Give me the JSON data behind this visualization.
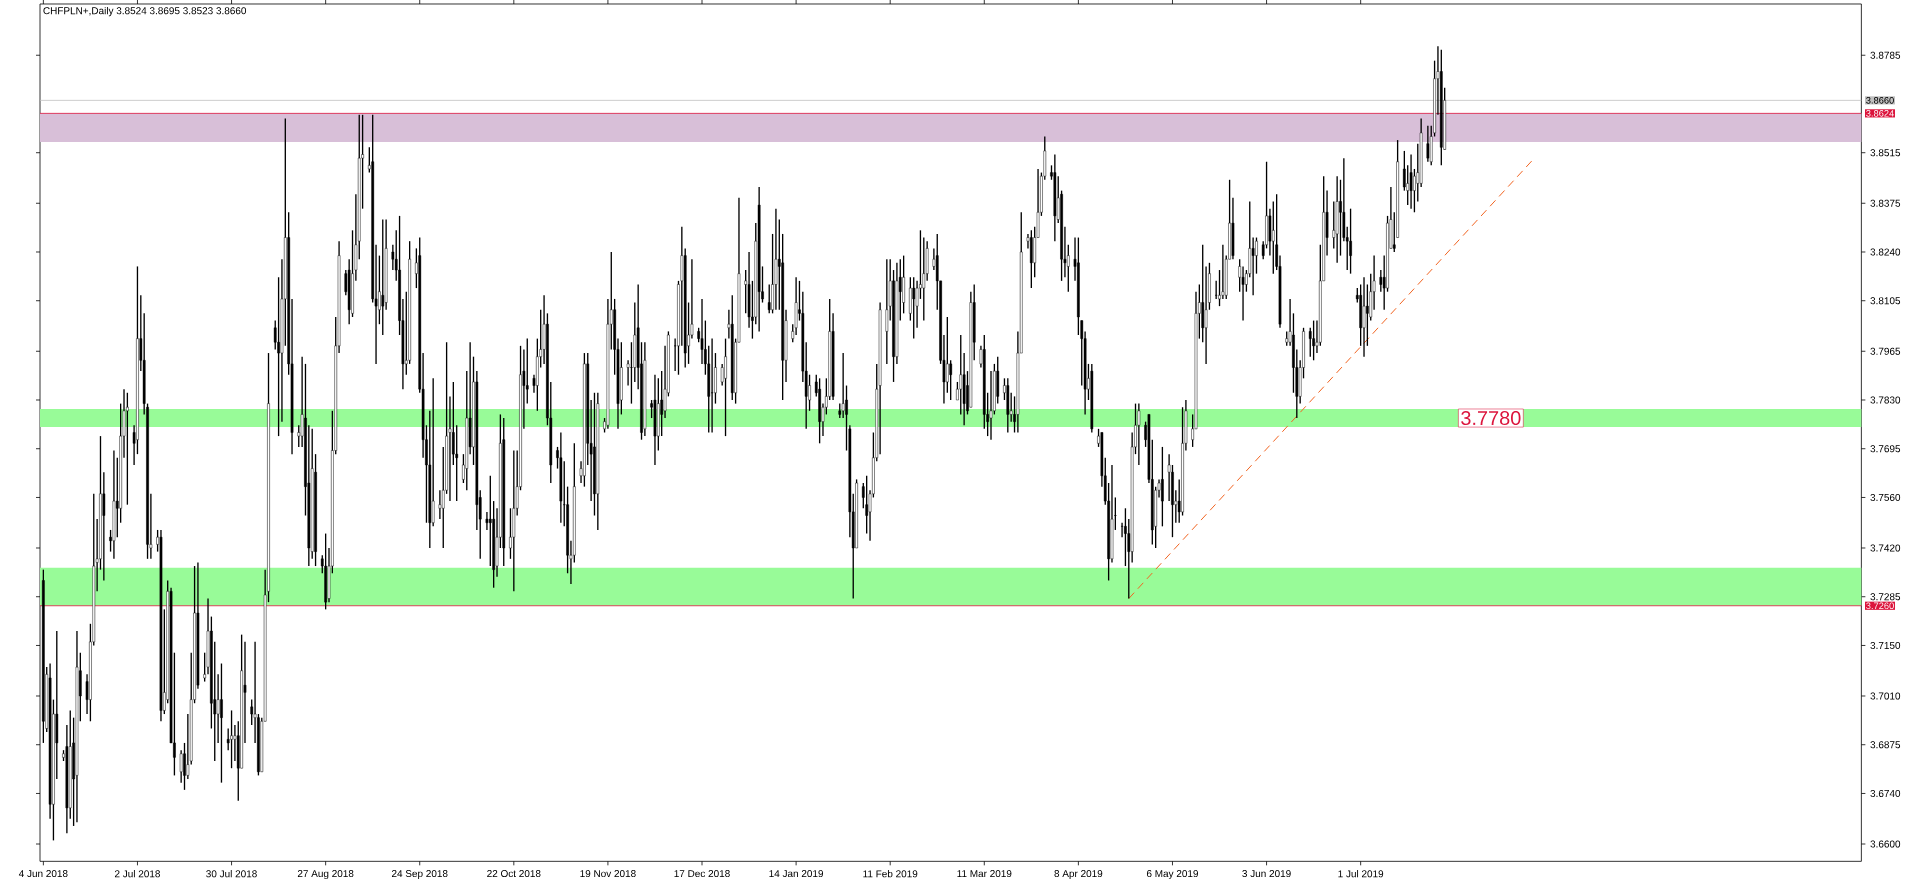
{
  "chart_data": {
    "type": "candlestick",
    "title": "CHFPLN+,Daily  3.8524 3.8695 3.8523 3.8660",
    "xlim": [
      "2018-06-03",
      "2019-11-27"
    ],
    "ylim": [
      3.6552,
      3.8927
    ],
    "xticks": [
      {
        "value": "2018-06-04",
        "label": "4 Jun 2018"
      },
      {
        "value": "2018-07-02",
        "label": "2 Jul 2018"
      },
      {
        "value": "2018-07-30",
        "label": "30 Jul 2018"
      },
      {
        "value": "2018-08-27",
        "label": "27 Aug 2018"
      },
      {
        "value": "2018-09-24",
        "label": "24 Sep 2018"
      },
      {
        "value": "2018-10-22",
        "label": "22 Oct 2018"
      },
      {
        "value": "2018-11-19",
        "label": "19 Nov 2018"
      },
      {
        "value": "2018-12-17",
        "label": "17 Dec 2018"
      },
      {
        "value": "2019-01-14",
        "label": "14 Jan 2019"
      },
      {
        "value": "2019-02-11",
        "label": "11 Feb 2019"
      },
      {
        "value": "2019-03-11",
        "label": "11 Mar 2019"
      },
      {
        "value": "2019-04-08",
        "label": "8 Apr 2019"
      },
      {
        "value": "2019-05-06",
        "label": "6 May 2019"
      },
      {
        "value": "2019-06-03",
        "label": "3 Jun 2019"
      },
      {
        "value": "2019-07-01",
        "label": "1 Jul 2019"
      }
    ],
    "yticks": [
      {
        "value": 3.8785,
        "label": "3.8785"
      },
      {
        "value": 3.8515,
        "label": "3.8515"
      },
      {
        "value": 3.8375,
        "label": "3.8375"
      },
      {
        "value": 3.824,
        "label": "3.8240"
      },
      {
        "value": 3.8105,
        "label": "3.8105"
      },
      {
        "value": 3.7965,
        "label": "3.7965"
      },
      {
        "value": 3.783,
        "label": "3.7830"
      },
      {
        "value": 3.7695,
        "label": "3.7695"
      },
      {
        "value": 3.756,
        "label": "3.7560"
      },
      {
        "value": 3.742,
        "label": "3.7420"
      },
      {
        "value": 3.7285,
        "label": "3.7285"
      },
      {
        "value": 3.715,
        "label": "3.7150"
      },
      {
        "value": 3.701,
        "label": "3.7010"
      },
      {
        "value": 3.6875,
        "label": "3.6875"
      },
      {
        "value": 3.674,
        "label": "3.6740"
      },
      {
        "value": 3.66,
        "label": "3.6600"
      }
    ],
    "bands": [
      {
        "axis": "y",
        "from": 3.8545,
        "to": 3.8624,
        "color": "#d8bfd8"
      },
      {
        "axis": "y",
        "from": 3.726,
        "to": 3.7365,
        "color": "#98fb98"
      },
      {
        "axis": "y",
        "from": 3.7755,
        "to": 3.7805,
        "label": "3.7780",
        "color": "#98fb98"
      }
    ],
    "ref_lines": [
      {
        "axis": "y",
        "value": 3.866,
        "label": "3.8660",
        "color": "#c0c0c0"
      },
      {
        "axis": "y",
        "value": 3.8624,
        "label": "3.8624",
        "color": "#dc143c"
      },
      {
        "axis": "y",
        "value": 3.726,
        "label": "3.7260",
        "color": "#dc143c"
      }
    ],
    "series": [
      {
        "type": "line",
        "x": [
          "2019-04-23",
          "2019-08-21"
        ],
        "values": [
          3.728,
          3.8493
        ],
        "color": "#f26522",
        "line_style": "dashed"
      }
    ],
    "x": [
      "2018-06-04",
      "2018-06-05",
      "2018-06-06",
      "2018-06-07",
      "2018-06-08",
      "2018-06-10",
      "2018-06-11",
      "2018-06-12",
      "2018-06-13",
      "2018-06-14",
      "2018-06-15",
      "2018-06-17",
      "2018-06-18",
      "2018-06-19",
      "2018-06-20",
      "2018-06-21",
      "2018-06-22",
      "2018-06-24",
      "2018-06-25",
      "2018-06-26",
      "2018-06-27",
      "2018-06-28",
      "2018-06-29",
      "2018-07-01",
      "2018-07-02",
      "2018-07-03",
      "2018-07-04",
      "2018-07-05",
      "2018-07-06",
      "2018-07-08",
      "2018-07-09",
      "2018-07-10",
      "2018-07-11",
      "2018-07-12",
      "2018-07-13",
      "2018-07-15",
      "2018-07-16",
      "2018-07-17",
      "2018-07-18",
      "2018-07-19",
      "2018-07-20",
      "2018-07-22",
      "2018-07-23",
      "2018-07-24",
      "2018-07-25",
      "2018-07-26",
      "2018-07-27",
      "2018-07-29",
      "2018-07-30",
      "2018-07-31",
      "2018-08-01",
      "2018-08-02",
      "2018-08-03",
      "2018-08-05",
      "2018-08-06",
      "2018-08-07",
      "2018-08-08",
      "2018-08-09",
      "2018-08-10",
      "2018-08-12",
      "2018-08-13",
      "2018-08-14",
      "2018-08-15",
      "2018-08-16",
      "2018-08-17",
      "2018-08-19",
      "2018-08-20",
      "2018-08-21",
      "2018-08-22",
      "2018-08-23",
      "2018-08-24",
      "2018-08-26",
      "2018-08-27",
      "2018-08-28",
      "2018-08-29",
      "2018-08-30",
      "2018-08-31",
      "2018-09-02",
      "2018-09-03",
      "2018-09-04",
      "2018-09-05",
      "2018-09-06",
      "2018-09-07",
      "2018-09-09",
      "2018-09-10",
      "2018-09-11",
      "2018-09-12",
      "2018-09-13",
      "2018-09-14",
      "2018-09-16",
      "2018-09-17",
      "2018-09-18",
      "2018-09-19",
      "2018-09-20",
      "2018-09-21",
      "2018-09-23",
      "2018-09-24",
      "2018-09-25",
      "2018-09-26",
      "2018-09-27",
      "2018-09-28",
      "2018-09-30",
      "2018-10-01",
      "2018-10-02",
      "2018-10-03",
      "2018-10-04",
      "2018-10-05",
      "2018-10-07",
      "2018-10-08",
      "2018-10-09",
      "2018-10-10",
      "2018-10-11",
      "2018-10-12",
      "2018-10-14",
      "2018-10-15",
      "2018-10-16",
      "2018-10-17",
      "2018-10-18",
      "2018-10-19",
      "2018-10-21",
      "2018-10-22",
      "2018-10-23",
      "2018-10-24",
      "2018-10-25",
      "2018-10-26",
      "2018-10-28",
      "2018-10-29",
      "2018-10-30",
      "2018-10-31",
      "2018-11-01",
      "2018-11-02",
      "2018-11-04",
      "2018-11-05",
      "2018-11-06",
      "2018-11-07",
      "2018-11-08",
      "2018-11-09",
      "2018-11-11",
      "2018-11-12",
      "2018-11-13",
      "2018-11-14",
      "2018-11-15",
      "2018-11-16",
      "2018-11-18",
      "2018-11-19",
      "2018-11-20",
      "2018-11-21",
      "2018-11-22",
      "2018-11-23",
      "2018-11-25",
      "2018-11-26",
      "2018-11-27",
      "2018-11-28",
      "2018-11-29",
      "2018-11-30",
      "2018-12-02",
      "2018-12-03",
      "2018-12-04",
      "2018-12-05",
      "2018-12-06",
      "2018-12-07",
      "2018-12-09",
      "2018-12-10",
      "2018-12-11",
      "2018-12-12",
      "2018-12-13",
      "2018-12-14",
      "2018-12-16",
      "2018-12-17",
      "2018-12-18",
      "2018-12-19",
      "2018-12-20",
      "2018-12-21",
      "2018-12-23",
      "2018-12-24",
      "2018-12-25",
      "2018-12-26",
      "2018-12-27",
      "2018-12-28",
      "2018-12-30",
      "2018-12-31",
      "2019-01-01",
      "2019-01-02",
      "2019-01-03",
      "2019-01-04",
      "2019-01-06",
      "2019-01-07",
      "2019-01-08",
      "2019-01-09",
      "2019-01-10",
      "2019-01-11",
      "2019-01-13",
      "2019-01-14",
      "2019-01-15",
      "2019-01-16",
      "2019-01-17",
      "2019-01-18",
      "2019-01-20",
      "2019-01-21",
      "2019-01-22",
      "2019-01-23",
      "2019-01-24",
      "2019-01-25",
      "2019-01-27",
      "2019-01-28",
      "2019-01-29",
      "2019-01-30",
      "2019-01-31",
      "2019-02-01",
      "2019-02-03",
      "2019-02-04",
      "2019-02-05",
      "2019-02-06",
      "2019-02-07",
      "2019-02-08",
      "2019-02-10",
      "2019-02-11",
      "2019-02-12",
      "2019-02-13",
      "2019-02-14",
      "2019-02-15",
      "2019-02-17",
      "2019-02-18",
      "2019-02-19",
      "2019-02-20",
      "2019-02-21",
      "2019-02-22",
      "2019-02-24",
      "2019-02-25",
      "2019-02-26",
      "2019-02-27",
      "2019-02-28",
      "2019-03-01",
      "2019-03-03",
      "2019-03-04",
      "2019-03-05",
      "2019-03-06",
      "2019-03-07",
      "2019-03-08",
      "2019-03-10",
      "2019-03-11",
      "2019-03-12",
      "2019-03-13",
      "2019-03-14",
      "2019-03-15",
      "2019-03-17",
      "2019-03-18",
      "2019-03-19",
      "2019-03-20",
      "2019-03-21",
      "2019-03-22",
      "2019-03-24",
      "2019-03-25",
      "2019-03-26",
      "2019-03-27",
      "2019-03-28",
      "2019-03-29",
      "2019-03-31",
      "2019-04-01",
      "2019-04-02",
      "2019-04-03",
      "2019-04-04",
      "2019-04-05",
      "2019-04-07",
      "2019-04-08",
      "2019-04-09",
      "2019-04-10",
      "2019-04-11",
      "2019-04-12",
      "2019-04-14",
      "2019-04-15",
      "2019-04-16",
      "2019-04-17",
      "2019-04-18",
      "2019-04-19",
      "2019-04-21",
      "2019-04-22",
      "2019-04-23",
      "2019-04-24",
      "2019-04-25",
      "2019-04-26",
      "2019-04-28",
      "2019-04-29",
      "2019-04-30",
      "2019-05-01",
      "2019-05-02",
      "2019-05-03",
      "2019-05-05",
      "2019-05-06",
      "2019-05-07",
      "2019-05-08",
      "2019-05-09",
      "2019-05-10",
      "2019-05-12",
      "2019-05-13",
      "2019-05-14",
      "2019-05-15",
      "2019-05-16",
      "2019-05-17",
      "2019-05-19",
      "2019-05-20",
      "2019-05-21",
      "2019-05-22",
      "2019-05-23",
      "2019-05-24",
      "2019-05-26",
      "2019-05-27",
      "2019-05-28",
      "2019-05-29",
      "2019-05-30",
      "2019-05-31",
      "2019-06-02",
      "2019-06-03",
      "2019-06-04",
      "2019-06-05",
      "2019-06-06",
      "2019-06-07",
      "2019-06-09",
      "2019-06-10",
      "2019-06-11",
      "2019-06-12",
      "2019-06-13",
      "2019-06-14",
      "2019-06-16",
      "2019-06-17",
      "2019-06-18",
      "2019-06-19",
      "2019-06-20",
      "2019-06-21",
      "2019-06-23",
      "2019-06-24",
      "2019-06-25",
      "2019-06-26",
      "2019-06-27",
      "2019-06-28",
      "2019-06-30",
      "2019-07-01",
      "2019-07-02",
      "2019-07-03",
      "2019-07-04",
      "2019-07-05",
      "2019-07-07",
      "2019-07-08",
      "2019-07-09",
      "2019-07-10",
      "2019-07-11",
      "2019-07-12",
      "2019-07-14",
      "2019-07-15",
      "2019-07-16",
      "2019-07-17",
      "2019-07-18",
      "2019-07-19",
      "2019-07-21",
      "2019-07-22",
      "2019-07-23",
      "2019-07-24",
      "2019-07-25",
      "2019-07-26"
    ],
    "ohlc": [
      [
        3.733,
        3.736,
        3.688,
        3.694
      ],
      [
        3.692,
        3.709,
        3.691,
        3.707
      ],
      [
        3.706,
        3.71,
        3.667,
        3.671
      ],
      [
        3.671,
        3.7,
        3.661,
        3.696
      ],
      [
        3.696,
        3.719,
        3.678,
        3.688
      ],
      [
        3.684,
        3.686,
        3.683,
        3.685
      ],
      [
        3.687,
        3.693,
        3.663,
        3.67
      ],
      [
        3.67,
        3.697,
        3.667,
        3.687
      ],
      [
        3.688,
        3.695,
        3.665,
        3.678
      ],
      [
        3.679,
        3.719,
        3.666,
        3.709
      ],
      [
        3.708,
        3.713,
        3.694,
        3.701
      ],
      [
        3.705,
        3.707,
        3.696,
        3.7
      ],
      [
        3.7,
        3.721,
        3.694,
        3.716
      ],
      [
        3.716,
        3.757,
        3.715,
        3.737
      ],
      [
        3.738,
        3.75,
        3.73,
        3.739
      ],
      [
        3.739,
        3.773,
        3.736,
        3.757
      ],
      [
        3.757,
        3.763,
        3.733,
        3.751
      ],
      [
        3.745,
        3.747,
        3.741,
        3.744
      ],
      [
        3.744,
        3.769,
        3.739,
        3.755
      ],
      [
        3.755,
        3.767,
        3.745,
        3.753
      ],
      [
        3.753,
        3.782,
        3.749,
        3.773
      ],
      [
        3.773,
        3.786,
        3.767,
        3.78
      ],
      [
        3.78,
        3.785,
        3.754,
        3.781
      ],
      [
        3.774,
        3.776,
        3.765,
        3.771
      ],
      [
        3.772,
        3.82,
        3.768,
        3.8
      ],
      [
        3.8,
        3.812,
        3.791,
        3.794
      ],
      [
        3.794,
        3.807,
        3.779,
        3.782
      ],
      [
        3.781,
        3.782,
        3.739,
        3.743
      ],
      [
        3.742,
        3.757,
        3.739,
        3.743
      ],
      [
        3.743,
        3.747,
        3.741,
        3.745
      ],
      [
        3.745,
        3.747,
        3.694,
        3.697
      ],
      [
        3.697,
        3.725,
        3.696,
        3.702
      ],
      [
        3.7,
        3.733,
        3.699,
        3.73
      ],
      [
        3.73,
        3.731,
        3.688,
        3.688
      ],
      [
        3.688,
        3.713,
        3.679,
        3.684
      ],
      [
        3.68,
        3.686,
        3.677,
        3.685
      ],
      [
        3.685,
        3.688,
        3.675,
        3.679
      ],
      [
        3.679,
        3.696,
        3.678,
        3.682
      ],
      [
        3.683,
        3.713,
        3.682,
        3.7
      ],
      [
        3.7,
        3.737,
        3.699,
        3.724
      ],
      [
        3.724,
        3.738,
        3.703,
        3.704
      ],
      [
        3.706,
        3.713,
        3.705,
        3.707
      ],
      [
        3.709,
        3.728,
        3.707,
        3.719
      ],
      [
        3.719,
        3.723,
        3.692,
        3.699
      ],
      [
        3.7,
        3.716,
        3.683,
        3.696
      ],
      [
        3.696,
        3.707,
        3.688,
        3.7
      ],
      [
        3.7,
        3.71,
        3.677,
        3.695
      ],
      [
        3.689,
        3.692,
        3.686,
        3.688
      ],
      [
        3.689,
        3.697,
        3.681,
        3.69
      ],
      [
        3.689,
        3.693,
        3.683,
        3.69
      ],
      [
        3.69,
        3.694,
        3.672,
        3.681
      ],
      [
        3.681,
        3.718,
        3.681,
        3.708
      ],
      [
        3.704,
        3.716,
        3.688,
        3.702
      ],
      [
        3.698,
        3.7,
        3.693,
        3.696
      ],
      [
        3.695,
        3.716,
        3.688,
        3.696
      ],
      [
        3.695,
        3.696,
        3.679,
        3.68
      ],
      [
        3.68,
        3.695,
        3.68,
        3.694
      ],
      [
        3.694,
        3.736,
        3.694,
        3.729
      ],
      [
        3.73,
        3.796,
        3.727,
        3.782
      ],
      [
        3.803,
        3.805,
        3.797,
        3.799
      ],
      [
        3.799,
        3.817,
        3.773,
        3.796
      ],
      [
        3.796,
        3.822,
        3.777,
        3.811
      ],
      [
        3.811,
        3.861,
        3.798,
        3.828
      ],
      [
        3.828,
        3.835,
        3.79,
        3.793
      ],
      [
        3.793,
        3.811,
        3.768,
        3.774
      ],
      [
        3.773,
        3.776,
        3.77,
        3.774
      ],
      [
        3.773,
        3.795,
        3.77,
        3.779
      ],
      [
        3.778,
        3.793,
        3.751,
        3.759
      ],
      [
        3.76,
        3.776,
        3.737,
        3.742
      ],
      [
        3.741,
        3.775,
        3.739,
        3.764
      ],
      [
        3.763,
        3.768,
        3.737,
        3.741
      ],
      [
        3.739,
        3.74,
        3.735,
        3.737
      ],
      [
        3.737,
        3.746,
        3.725,
        3.727
      ],
      [
        3.728,
        3.742,
        3.727,
        3.737
      ],
      [
        3.737,
        3.78,
        3.735,
        3.769
      ],
      [
        3.769,
        3.806,
        3.768,
        3.798
      ],
      [
        3.798,
        3.827,
        3.796,
        3.823
      ],
      [
        3.818,
        3.819,
        3.812,
        3.813
      ],
      [
        3.819,
        3.822,
        3.804,
        3.808
      ],
      [
        3.807,
        3.83,
        3.806,
        3.818
      ],
      [
        3.819,
        3.84,
        3.816,
        3.826
      ],
      [
        3.827,
        3.862,
        3.822,
        3.85
      ],
      [
        3.85,
        3.862,
        3.836,
        3.851
      ],
      [
        3.847,
        3.853,
        3.846,
        3.848
      ],
      [
        3.849,
        3.862,
        3.81,
        3.811
      ],
      [
        3.811,
        3.826,
        3.793,
        3.809
      ],
      [
        3.808,
        3.823,
        3.804,
        3.813
      ],
      [
        3.812,
        3.833,
        3.801,
        3.809
      ],
      [
        3.81,
        3.833,
        3.808,
        3.825
      ],
      [
        3.824,
        3.826,
        3.819,
        3.822
      ],
      [
        3.822,
        3.83,
        3.816,
        3.819
      ],
      [
        3.819,
        3.834,
        3.801,
        3.805
      ],
      [
        3.805,
        3.811,
        3.786,
        3.793
      ],
      [
        3.793,
        3.813,
        3.79,
        3.794
      ],
      [
        3.794,
        3.827,
        3.793,
        3.822
      ],
      [
        3.818,
        3.825,
        3.814,
        3.821
      ],
      [
        3.823,
        3.828,
        3.785,
        3.786
      ],
      [
        3.786,
        3.796,
        3.767,
        3.772
      ],
      [
        3.772,
        3.776,
        3.749,
        3.765
      ],
      [
        3.765,
        3.78,
        3.742,
        3.749
      ],
      [
        3.749,
        3.789,
        3.748,
        3.755
      ],
      [
        3.753,
        3.758,
        3.75,
        3.754
      ],
      [
        3.753,
        3.77,
        3.742,
        3.758
      ],
      [
        3.758,
        3.799,
        3.757,
        3.773
      ],
      [
        3.774,
        3.784,
        3.755,
        3.775
      ],
      [
        3.774,
        3.788,
        3.765,
        3.768
      ],
      [
        3.768,
        3.776,
        3.755,
        3.767
      ],
      [
        3.761,
        3.768,
        3.76,
        3.765
      ],
      [
        3.764,
        3.791,
        3.758,
        3.778
      ],
      [
        3.778,
        3.799,
        3.768,
        3.77
      ],
      [
        3.77,
        3.795,
        3.765,
        3.788
      ],
      [
        3.788,
        3.791,
        3.747,
        3.754
      ],
      [
        3.756,
        3.758,
        3.739,
        3.75
      ],
      [
        3.75,
        3.752,
        3.747,
        3.749
      ],
      [
        3.75,
        3.762,
        3.737,
        3.749
      ],
      [
        3.75,
        3.755,
        3.731,
        3.736
      ],
      [
        3.737,
        3.753,
        3.734,
        3.745
      ],
      [
        3.745,
        3.779,
        3.742,
        3.771
      ],
      [
        3.772,
        3.778,
        3.737,
        3.742
      ],
      [
        3.742,
        3.753,
        3.739,
        3.745
      ],
      [
        3.745,
        3.769,
        3.73,
        3.753
      ],
      [
        3.753,
        3.769,
        3.751,
        3.759
      ],
      [
        3.759,
        3.798,
        3.758,
        3.79
      ],
      [
        3.791,
        3.797,
        3.775,
        3.787
      ],
      [
        3.787,
        3.8,
        3.782,
        3.786
      ],
      [
        3.789,
        3.79,
        3.785,
        3.787
      ],
      [
        3.787,
        3.8,
        3.78,
        3.795
      ],
      [
        3.795,
        3.808,
        3.792,
        3.797
      ],
      [
        3.797,
        3.812,
        3.793,
        3.804
      ],
      [
        3.804,
        3.807,
        3.776,
        3.778
      ],
      [
        3.778,
        3.788,
        3.76,
        3.765
      ],
      [
        3.769,
        3.77,
        3.764,
        3.767
      ],
      [
        3.767,
        3.774,
        3.749,
        3.755
      ],
      [
        3.754,
        3.766,
        3.748,
        3.754
      ],
      [
        3.754,
        3.759,
        3.735,
        3.74
      ],
      [
        3.739,
        3.744,
        3.732,
        3.74
      ],
      [
        3.74,
        3.771,
        3.738,
        3.759
      ],
      [
        3.762,
        3.766,
        3.76,
        3.764
      ],
      [
        3.762,
        3.796,
        3.759,
        3.793
      ],
      [
        3.793,
        3.796,
        3.765,
        3.771
      ],
      [
        3.771,
        3.783,
        3.755,
        3.768
      ],
      [
        3.77,
        3.785,
        3.751,
        3.757
      ],
      [
        3.757,
        3.785,
        3.747,
        3.782
      ],
      [
        3.775,
        3.778,
        3.774,
        3.777
      ],
      [
        3.776,
        3.811,
        3.775,
        3.804
      ],
      [
        3.804,
        3.824,
        3.797,
        3.808
      ],
      [
        3.808,
        3.811,
        3.79,
        3.797
      ],
      [
        3.797,
        3.8,
        3.775,
        3.782
      ],
      [
        3.783,
        3.799,
        3.779,
        3.792
      ],
      [
        3.792,
        3.794,
        3.787,
        3.793
      ],
      [
        3.792,
        3.799,
        3.782,
        3.792
      ],
      [
        3.792,
        3.81,
        3.788,
        3.801
      ],
      [
        3.803,
        3.815,
        3.786,
        3.792
      ],
      [
        3.793,
        3.799,
        3.772,
        3.774
      ],
      [
        3.775,
        3.799,
        3.773,
        3.794
      ],
      [
        3.782,
        3.783,
        3.778,
        3.781
      ],
      [
        3.783,
        3.79,
        3.765,
        3.773
      ],
      [
        3.773,
        3.789,
        3.769,
        3.782
      ],
      [
        3.783,
        3.791,
        3.773,
        3.779
      ],
      [
        3.78,
        3.798,
        3.778,
        3.786
      ],
      [
        3.785,
        3.802,
        3.784,
        3.801
      ],
      [
        3.798,
        3.8,
        3.791,
        3.798
      ],
      [
        3.798,
        3.816,
        3.79,
        3.815
      ],
      [
        3.816,
        3.831,
        3.798,
        3.823
      ],
      [
        3.823,
        3.825,
        3.792,
        3.796
      ],
      [
        3.798,
        3.81,
        3.793,
        3.801
      ],
      [
        3.801,
        3.822,
        3.8,
        3.804
      ],
      [
        3.802,
        3.803,
        3.799,
        3.8
      ],
      [
        3.8,
        3.811,
        3.793,
        3.797
      ],
      [
        3.797,
        3.805,
        3.79,
        3.793
      ],
      [
        3.793,
        3.798,
        3.774,
        3.784
      ],
      [
        3.785,
        3.8,
        3.774,
        3.785
      ],
      [
        3.785,
        3.796,
        3.782,
        3.792
      ],
      [
        3.788,
        3.793,
        3.787,
        3.792
      ],
      [
        3.789,
        3.8,
        3.773,
        3.795
      ],
      [
        3.803,
        3.808,
        3.8,
        3.804
      ],
      [
        3.804,
        3.812,
        3.783,
        3.785
      ],
      [
        3.785,
        3.8,
        3.782,
        3.799
      ],
      [
        3.799,
        3.839,
        3.799,
        3.818
      ],
      [
        3.815,
        3.819,
        3.807,
        3.816
      ],
      [
        3.815,
        3.824,
        3.803,
        3.806
      ],
      [
        3.806,
        3.816,
        3.8,
        3.805
      ],
      [
        3.806,
        3.832,
        3.804,
        3.827
      ],
      [
        3.837,
        3.842,
        3.802,
        3.813
      ],
      [
        3.813,
        3.82,
        3.81,
        3.811
      ],
      [
        3.81,
        3.815,
        3.807,
        3.808
      ],
      [
        3.808,
        3.829,
        3.807,
        3.815
      ],
      [
        3.815,
        3.836,
        3.808,
        3.822
      ],
      [
        3.822,
        3.833,
        3.808,
        3.82
      ],
      [
        3.821,
        3.829,
        3.783,
        3.794
      ],
      [
        3.794,
        3.808,
        3.788,
        3.805
      ],
      [
        3.8,
        3.804,
        3.799,
        3.802
      ],
      [
        3.803,
        3.817,
        3.801,
        3.81
      ],
      [
        3.808,
        3.816,
        3.805,
        3.807
      ],
      [
        3.807,
        3.813,
        3.788,
        3.791
      ],
      [
        3.791,
        3.799,
        3.775,
        3.784
      ],
      [
        3.783,
        3.79,
        3.78,
        3.787
      ],
      [
        3.788,
        3.79,
        3.784,
        3.785
      ],
      [
        3.786,
        3.789,
        3.771,
        3.777
      ],
      [
        3.777,
        3.782,
        3.773,
        3.781
      ],
      [
        3.781,
        3.789,
        3.779,
        3.784
      ],
      [
        3.784,
        3.811,
        3.783,
        3.802
      ],
      [
        3.802,
        3.807,
        3.783,
        3.784
      ],
      [
        3.78,
        3.782,
        3.778,
        3.779
      ],
      [
        3.78,
        3.796,
        3.778,
        3.782
      ],
      [
        3.783,
        3.787,
        3.769,
        3.779
      ],
      [
        3.775,
        3.776,
        3.745,
        3.752
      ],
      [
        3.752,
        3.757,
        3.728,
        3.742
      ],
      [
        3.742,
        3.761,
        3.742,
        3.76
      ],
      [
        3.759,
        3.76,
        3.753,
        3.756
      ],
      [
        3.754,
        3.762,
        3.746,
        3.751
      ],
      [
        3.752,
        3.758,
        3.744,
        3.757
      ],
      [
        3.757,
        3.774,
        3.756,
        3.767
      ],
      [
        3.767,
        3.793,
        3.766,
        3.786
      ],
      [
        3.787,
        3.81,
        3.768,
        3.808
      ],
      [
        3.802,
        3.822,
        3.793,
        3.808
      ],
      [
        3.809,
        3.822,
        3.805,
        3.816
      ],
      [
        3.816,
        3.819,
        3.788,
        3.795
      ],
      [
        3.795,
        3.821,
        3.793,
        3.816
      ],
      [
        3.817,
        3.822,
        3.805,
        3.813
      ],
      [
        3.81,
        3.823,
        3.807,
        3.817
      ],
      [
        3.807,
        3.817,
        3.805,
        3.814
      ],
      [
        3.814,
        3.817,
        3.8,
        3.811
      ],
      [
        3.809,
        3.816,
        3.803,
        3.814
      ],
      [
        3.814,
        3.83,
        3.811,
        3.815
      ],
      [
        3.814,
        3.828,
        3.805,
        3.818
      ],
      [
        3.818,
        3.827,
        3.816,
        3.825
      ],
      [
        3.82,
        3.825,
        3.819,
        3.822
      ],
      [
        3.823,
        3.829,
        3.808,
        3.816
      ],
      [
        3.816,
        3.816,
        3.793,
        3.794
      ],
      [
        3.794,
        3.801,
        3.782,
        3.788
      ],
      [
        3.788,
        3.806,
        3.785,
        3.793
      ],
      [
        3.793,
        3.794,
        3.783,
        3.79
      ],
      [
        3.783,
        3.788,
        3.783,
        3.786
      ],
      [
        3.786,
        3.801,
        3.779,
        3.79
      ],
      [
        3.79,
        3.796,
        3.776,
        3.782
      ],
      [
        3.787,
        3.791,
        3.779,
        3.78
      ],
      [
        3.781,
        3.813,
        3.781,
        3.81
      ],
      [
        3.81,
        3.815,
        3.794,
        3.799
      ],
      [
        3.793,
        3.798,
        3.792,
        3.797
      ],
      [
        3.797,
        3.801,
        3.775,
        3.779
      ],
      [
        3.779,
        3.785,
        3.773,
        3.777
      ],
      [
        3.778,
        3.791,
        3.772,
        3.78
      ],
      [
        3.78,
        3.793,
        3.779,
        3.791
      ],
      [
        3.791,
        3.795,
        3.782,
        3.784
      ],
      [
        3.785,
        3.789,
        3.783,
        3.787
      ],
      [
        3.787,
        3.789,
        3.774,
        3.779
      ],
      [
        3.779,
        3.785,
        3.777,
        3.78
      ],
      [
        3.779,
        3.784,
        3.774,
        3.777
      ],
      [
        3.779,
        3.802,
        3.774,
        3.796
      ],
      [
        3.796,
        3.835,
        3.796,
        3.824
      ],
      [
        3.827,
        3.829,
        3.825,
        3.828
      ],
      [
        3.828,
        3.83,
        3.814,
        3.821
      ],
      [
        3.821,
        3.831,
        3.817,
        3.828
      ],
      [
        3.828,
        3.847,
        3.828,
        3.835
      ],
      [
        3.835,
        3.846,
        3.834,
        3.845
      ],
      [
        3.845,
        3.856,
        3.844,
        3.852
      ],
      [
        3.846,
        3.848,
        3.844,
        3.845
      ],
      [
        3.846,
        3.851,
        3.827,
        3.834
      ],
      [
        3.833,
        3.845,
        3.832,
        3.839
      ],
      [
        3.84,
        3.841,
        3.816,
        3.822
      ],
      [
        3.822,
        3.831,
        3.817,
        3.821
      ],
      [
        3.82,
        3.826,
        3.813,
        3.823
      ],
      [
        3.822,
        3.828,
        3.816,
        3.82
      ],
      [
        3.821,
        3.828,
        3.801,
        3.806
      ],
      [
        3.805,
        3.805,
        3.787,
        3.8
      ],
      [
        3.8,
        3.802,
        3.779,
        3.786
      ],
      [
        3.786,
        3.793,
        3.783,
        3.789
      ],
      [
        3.791,
        3.793,
        3.774,
        3.775
      ],
      [
        3.771,
        3.775,
        3.77,
        3.773
      ],
      [
        3.774,
        3.774,
        3.759,
        3.762
      ],
      [
        3.762,
        3.767,
        3.754,
        3.755
      ],
      [
        3.755,
        3.76,
        3.733,
        3.739
      ],
      [
        3.739,
        3.765,
        3.738,
        3.75
      ],
      [
        3.751,
        3.756,
        3.747,
        3.751
      ],
      [
        3.748,
        3.749,
        3.745,
        3.748
      ],
      [
        3.748,
        3.753,
        3.737,
        3.746
      ],
      [
        3.746,
        3.75,
        3.728,
        3.741
      ],
      [
        3.741,
        3.774,
        3.738,
        3.77
      ],
      [
        3.77,
        3.782,
        3.768,
        3.776
      ],
      [
        3.776,
        3.782,
        3.765,
        3.78
      ],
      [
        3.776,
        3.777,
        3.77,
        3.772
      ],
      [
        3.779,
        3.779,
        3.76,
        3.761
      ],
      [
        3.761,
        3.772,
        3.743,
        3.747
      ],
      [
        3.748,
        3.759,
        3.742,
        3.758
      ],
      [
        3.758,
        3.761,
        3.756,
        3.76
      ],
      [
        3.761,
        3.77,
        3.748,
        3.755
      ],
      [
        3.763,
        3.768,
        3.755,
        3.765
      ],
      [
        3.763,
        3.765,
        3.745,
        3.754
      ],
      [
        3.754,
        3.758,
        3.749,
        3.755
      ],
      [
        3.755,
        3.761,
        3.749,
        3.752
      ],
      [
        3.752,
        3.781,
        3.751,
        3.771
      ],
      [
        3.771,
        3.783,
        3.769,
        3.78
      ],
      [
        3.772,
        3.779,
        3.77,
        3.775
      ],
      [
        3.775,
        3.813,
        3.775,
        3.807
      ],
      [
        3.807,
        3.815,
        3.8,
        3.81
      ],
      [
        3.81,
        3.826,
        3.799,
        3.803
      ],
      [
        3.803,
        3.82,
        3.793,
        3.808
      ],
      [
        3.81,
        3.821,
        3.808,
        3.818
      ],
      [
        3.812,
        3.816,
        3.811,
        3.812
      ],
      [
        3.811,
        3.819,
        3.809,
        3.812
      ],
      [
        3.812,
        3.826,
        3.811,
        3.813
      ],
      [
        3.812,
        3.823,
        3.811,
        3.822
      ],
      [
        3.822,
        3.844,
        3.822,
        3.832
      ],
      [
        3.832,
        3.839,
        3.822,
        3.823
      ],
      [
        3.817,
        3.822,
        3.813,
        3.82
      ],
      [
        3.817,
        3.82,
        3.805,
        3.815
      ],
      [
        3.815,
        3.819,
        3.813,
        3.818
      ],
      [
        3.818,
        3.838,
        3.817,
        3.825
      ],
      [
        3.825,
        3.828,
        3.812,
        3.823
      ],
      [
        3.823,
        3.828,
        3.818,
        3.827
      ],
      [
        3.826,
        3.827,
        3.822,
        3.823
      ],
      [
        3.826,
        3.849,
        3.825,
        3.834
      ],
      [
        3.834,
        3.836,
        3.823,
        3.827
      ],
      [
        3.827,
        3.838,
        3.818,
        3.83
      ],
      [
        3.826,
        3.84,
        3.819,
        3.82
      ],
      [
        3.82,
        3.823,
        3.803,
        3.804
      ],
      [
        3.799,
        3.802,
        3.798,
        3.8
      ],
      [
        3.799,
        3.811,
        3.798,
        3.802
      ],
      [
        3.801,
        3.807,
        3.785,
        3.792
      ],
      [
        3.792,
        3.797,
        3.778,
        3.784
      ],
      [
        3.784,
        3.794,
        3.782,
        3.792
      ],
      [
        3.792,
        3.803,
        3.789,
        3.802
      ],
      [
        3.802,
        3.803,
        3.795,
        3.8
      ],
      [
        3.8,
        3.805,
        3.794,
        3.798
      ],
      [
        3.798,
        3.805,
        3.796,
        3.799
      ],
      [
        3.799,
        3.826,
        3.798,
        3.816
      ],
      [
        3.816,
        3.845,
        3.816,
        3.835
      ],
      [
        3.835,
        3.841,
        3.823,
        3.828
      ],
      [
        3.828,
        3.838,
        3.825,
        3.83
      ],
      [
        3.829,
        3.845,
        3.821,
        3.838
      ],
      [
        3.838,
        3.844,
        3.823,
        3.835
      ],
      [
        3.835,
        3.85,
        3.827,
        3.828
      ],
      [
        3.828,
        3.831,
        3.819,
        3.827
      ],
      [
        3.827,
        3.836,
        3.818,
        3.823
      ],
      [
        3.812,
        3.814,
        3.81,
        3.811
      ],
      [
        3.812,
        3.815,
        3.798,
        3.803
      ],
      [
        3.803,
        3.817,
        3.795,
        3.809
      ],
      [
        3.809,
        3.815,
        3.798,
        3.807
      ],
      [
        3.806,
        3.818,
        3.805,
        3.813
      ],
      [
        3.813,
        3.823,
        3.808,
        3.816
      ],
      [
        3.817,
        3.819,
        3.813,
        3.815
      ],
      [
        3.817,
        3.823,
        3.808,
        3.814
      ],
      [
        3.814,
        3.834,
        3.813,
        3.832
      ],
      [
        3.825,
        3.842,
        3.825,
        3.833
      ],
      [
        3.826,
        3.835,
        3.824,
        3.825
      ],
      [
        3.828,
        3.855,
        3.828,
        3.849
      ],
      [
        3.847,
        3.852,
        3.841,
        3.842
      ],
      [
        3.841,
        3.848,
        3.837,
        3.843
      ],
      [
        3.846,
        3.851,
        3.836,
        3.841
      ],
      [
        3.841,
        3.847,
        3.835,
        3.845
      ],
      [
        3.843,
        3.854,
        3.838,
        3.846
      ],
      [
        3.843,
        3.861,
        3.842,
        3.857
      ],
      [
        3.854,
        3.859,
        3.849,
        3.85
      ],
      [
        3.849,
        3.859,
        3.848,
        3.856
      ],
      [
        3.857,
        3.877,
        3.856,
        3.872
      ],
      [
        3.872,
        3.881,
        3.862,
        3.874
      ],
      [
        3.874,
        3.88,
        3.848,
        3.853
      ],
      [
        3.8524,
        3.8695,
        3.8523,
        3.866
      ]
    ]
  }
}
